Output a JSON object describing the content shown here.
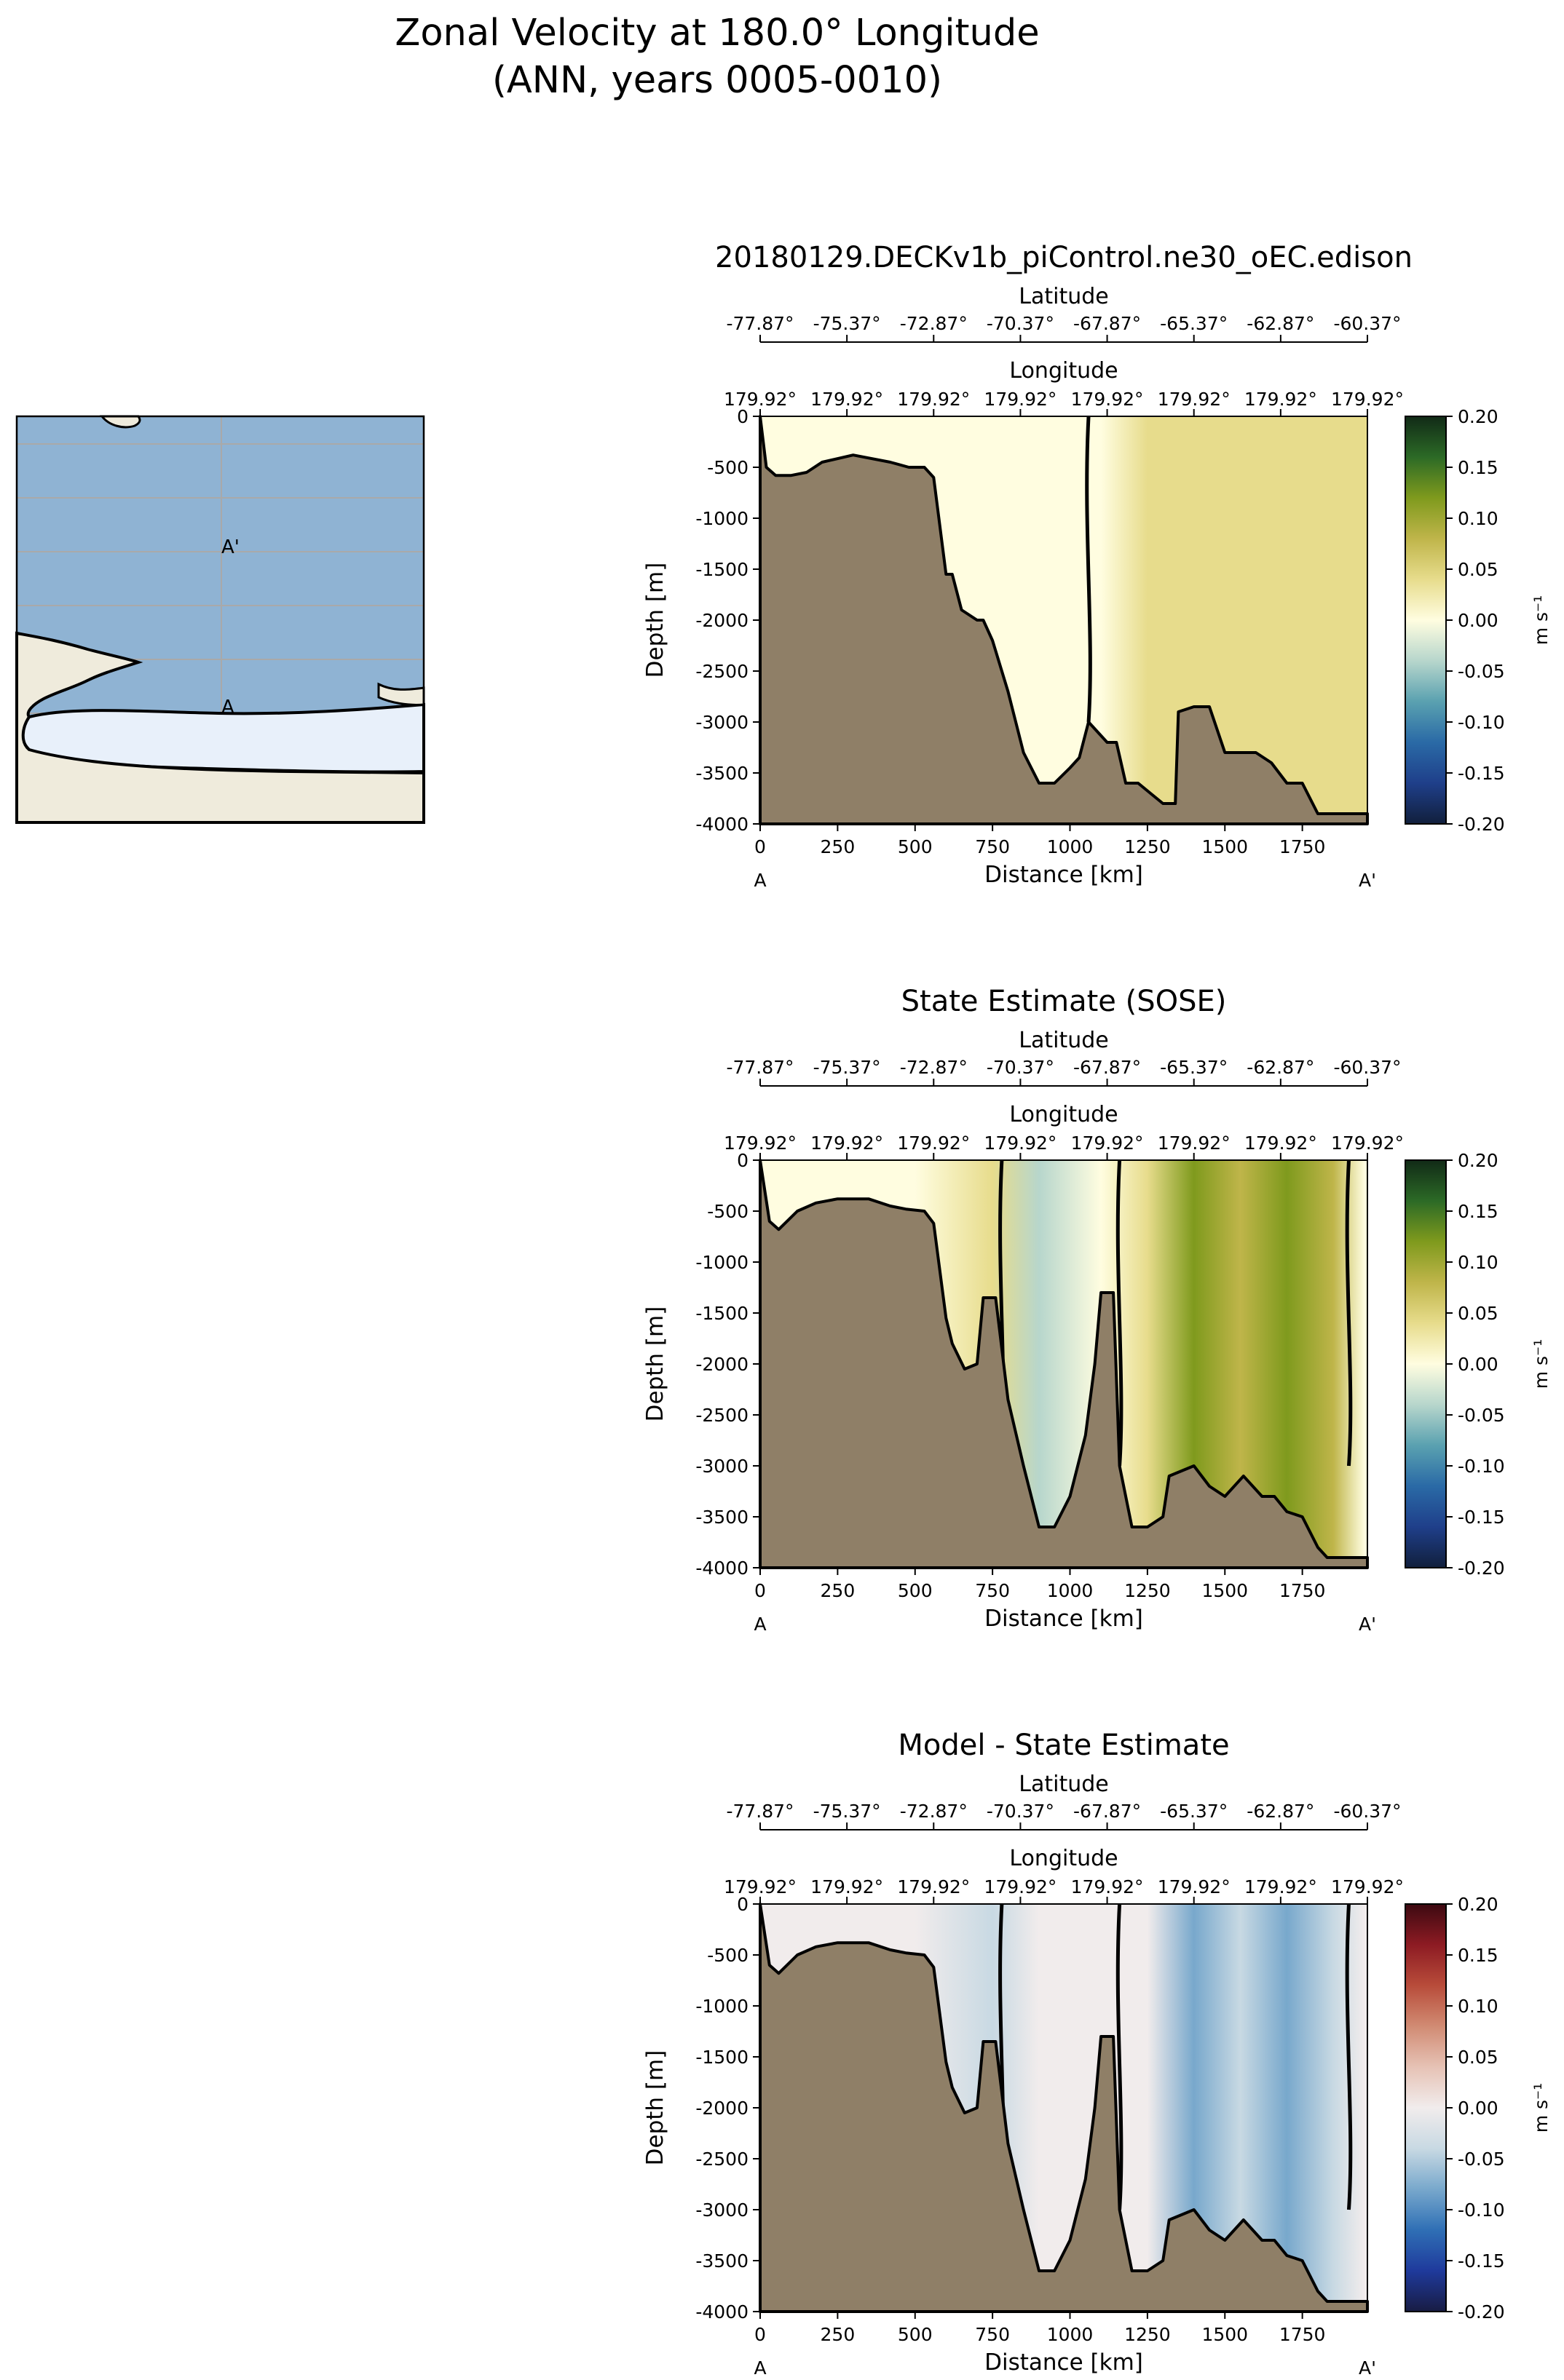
{
  "figure": {
    "title_line1": "Zonal Velocity at 180.0° Longitude",
    "title_line2": "(ANN, years 0005-0010)"
  },
  "map": {
    "point_start": "A",
    "point_end": "A'",
    "colors": {
      "ocean": "#8fb3d3",
      "land": "#efebdc",
      "ice": "#e8f0fa",
      "grid": "#a9a9a9"
    }
  },
  "chart_data": [
    {
      "type": "heatmap",
      "title": "20180129.DECKv1b_piControl.ne30_oEC.edison",
      "xlabel": "Distance [km]",
      "ylabel": "Depth [m]",
      "secondary_axes": {
        "latitude_label": "Latitude",
        "latitude_ticks": [
          "-77.87°",
          "-75.37°",
          "-72.87°",
          "-70.37°",
          "-67.87°",
          "-65.37°",
          "-62.87°",
          "-60.37°"
        ],
        "longitude_label": "Longitude",
        "longitude_ticks": [
          "179.92°",
          "179.92°",
          "179.92°",
          "179.92°",
          "179.92°",
          "179.92°",
          "179.92°",
          "179.92°"
        ]
      },
      "x_ticks": [
        "0",
        "250",
        "500",
        "750",
        "1000",
        "1250",
        "1500",
        "1750"
      ],
      "y_ticks": [
        "0",
        "-500",
        "-1000",
        "-1500",
        "-2000",
        "-2500",
        "-3000",
        "-3500",
        "-4000"
      ],
      "xlim": [
        0,
        1960
      ],
      "ylim": [
        -4000,
        0
      ],
      "section_start_label": "A",
      "section_end_label": "A'",
      "colorbar": {
        "label": "m s⁻¹",
        "range": [
          -0.2,
          0.2
        ],
        "ticks": [
          "0.20",
          "0.15",
          "0.10",
          "0.05",
          "0.00",
          "-0.05",
          "-0.10",
          "-0.15",
          "-0.20"
        ],
        "colormap": "delta"
      },
      "bathymetry_profile": {
        "distance_km": [
          0,
          20,
          50,
          100,
          150,
          200,
          300,
          420,
          480,
          530,
          560,
          600,
          620,
          650,
          700,
          720,
          750,
          800,
          850,
          900,
          950,
          1000,
          1030,
          1060,
          1090,
          1120,
          1150,
          1180,
          1220,
          1260,
          1300,
          1340,
          1350,
          1400,
          1450,
          1500,
          1600,
          1650,
          1700,
          1750,
          1800,
          1850,
          1900,
          1940,
          1960
        ],
        "depth_m": [
          0,
          -500,
          -580,
          -580,
          -550,
          -450,
          -380,
          -450,
          -500,
          -500,
          -600,
          -1550,
          -1550,
          -1900,
          -2000,
          -2000,
          -2200,
          -2700,
          -3300,
          -3600,
          -3600,
          -3450,
          -3350,
          -3000,
          -3100,
          -3200,
          -3200,
          -3600,
          -3600,
          -3700,
          -3800,
          -3800,
          -2900,
          -2850,
          -2850,
          -3300,
          -3300,
          -3400,
          -3600,
          -3600,
          -3900,
          -3900,
          -3900,
          -3900,
          -3900
        ]
      },
      "velocity_profile": {
        "distance_km": [
          0,
          250,
          500,
          750,
          1000,
          1100,
          1250,
          1500,
          1750,
          1950
        ],
        "surface_velocity_ms": [
          0.02,
          0.02,
          0.01,
          -0.005,
          -0.01,
          0.0,
          0.03,
          0.035,
          0.035,
          0.03
        ]
      },
      "zero_contour_km": [
        1060
      ]
    },
    {
      "type": "heatmap",
      "title": "State Estimate (SOSE)",
      "xlabel": "Distance [km]",
      "ylabel": "Depth [m]",
      "secondary_axes": {
        "latitude_label": "Latitude",
        "latitude_ticks": [
          "-77.87°",
          "-75.37°",
          "-72.87°",
          "-70.37°",
          "-67.87°",
          "-65.37°",
          "-62.87°",
          "-60.37°"
        ],
        "longitude_label": "Longitude",
        "longitude_ticks": [
          "179.92°",
          "179.92°",
          "179.92°",
          "179.92°",
          "179.92°",
          "179.92°",
          "179.92°",
          "179.92°"
        ]
      },
      "x_ticks": [
        "0",
        "250",
        "500",
        "750",
        "1000",
        "1250",
        "1500",
        "1750"
      ],
      "y_ticks": [
        "0",
        "-500",
        "-1000",
        "-1500",
        "-2000",
        "-2500",
        "-3000",
        "-3500",
        "-4000"
      ],
      "xlim": [
        0,
        1960
      ],
      "ylim": [
        -4000,
        0
      ],
      "section_start_label": "A",
      "section_end_label": "A'",
      "colorbar": {
        "label": "m s⁻¹",
        "range": [
          -0.2,
          0.2
        ],
        "ticks": [
          "0.20",
          "0.15",
          "0.10",
          "0.05",
          "0.00",
          "-0.05",
          "-0.10",
          "-0.15",
          "-0.20"
        ],
        "colormap": "delta"
      },
      "bathymetry_profile": {
        "distance_km": [
          0,
          30,
          60,
          120,
          180,
          250,
          350,
          420,
          470,
          530,
          560,
          600,
          620,
          660,
          700,
          720,
          760,
          800,
          850,
          900,
          950,
          1000,
          1050,
          1080,
          1100,
          1140,
          1160,
          1200,
          1250,
          1300,
          1320,
          1400,
          1450,
          1500,
          1560,
          1620,
          1660,
          1700,
          1750,
          1800,
          1830,
          1880,
          1920,
          1960
        ],
        "depth_m": [
          0,
          -600,
          -680,
          -500,
          -420,
          -380,
          -380,
          -450,
          -480,
          -500,
          -620,
          -1550,
          -1800,
          -2050,
          -2000,
          -1350,
          -1350,
          -2350,
          -3000,
          -3600,
          -3600,
          -3300,
          -2700,
          -2000,
          -1300,
          -1300,
          -3000,
          -3600,
          -3600,
          -3500,
          -3100,
          -3000,
          -3200,
          -3300,
          -3100,
          -3300,
          -3300,
          -3450,
          -3500,
          -3800,
          -3900,
          -3900,
          -3900,
          -3900
        ]
      },
      "velocity_profile": {
        "distance_km": [
          0,
          250,
          500,
          750,
          900,
          1100,
          1250,
          1400,
          1550,
          1700,
          1850,
          1950
        ],
        "surface_velocity_ms": [
          0.0,
          0.005,
          0.0,
          0.03,
          -0.03,
          -0.01,
          0.05,
          0.11,
          0.09,
          0.12,
          0.08,
          0.02
        ]
      },
      "zero_contour_km": [
        780,
        1160,
        1900
      ]
    },
    {
      "type": "heatmap",
      "title": "Model - State Estimate",
      "xlabel": "Distance [km]",
      "ylabel": "Depth [m]",
      "secondary_axes": {
        "latitude_label": "Latitude",
        "latitude_ticks": [
          "-77.87°",
          "-75.37°",
          "-72.87°",
          "-70.37°",
          "-67.87°",
          "-65.37°",
          "-62.87°",
          "-60.37°"
        ],
        "longitude_label": "Longitude",
        "longitude_ticks": [
          "179.92°",
          "179.92°",
          "179.92°",
          "179.92°",
          "179.92°",
          "179.92°",
          "179.92°",
          "179.92°"
        ]
      },
      "x_ticks": [
        "0",
        "250",
        "500",
        "750",
        "1000",
        "1250",
        "1500",
        "1750"
      ],
      "y_ticks": [
        "0",
        "-500",
        "-1000",
        "-1500",
        "-2000",
        "-2500",
        "-3000",
        "-3500",
        "-4000"
      ],
      "xlim": [
        0,
        1960
      ],
      "ylim": [
        -4000,
        0
      ],
      "section_start_label": "A",
      "section_end_label": "A'",
      "colorbar": {
        "label": "m s⁻¹",
        "range": [
          -0.2,
          0.2
        ],
        "ticks": [
          "0.20",
          "0.15",
          "0.10",
          "0.05",
          "0.00",
          "-0.05",
          "-0.10",
          "-0.15",
          "-0.20"
        ],
        "colormap": "balance"
      },
      "bathymetry_profile": {
        "distance_km": [
          0,
          30,
          60,
          120,
          180,
          250,
          350,
          420,
          470,
          530,
          560,
          600,
          620,
          660,
          700,
          720,
          760,
          800,
          850,
          900,
          950,
          1000,
          1050,
          1080,
          1100,
          1140,
          1160,
          1200,
          1250,
          1300,
          1320,
          1400,
          1450,
          1500,
          1560,
          1620,
          1660,
          1700,
          1750,
          1800,
          1830,
          1880,
          1920,
          1960
        ],
        "depth_m": [
          0,
          -600,
          -680,
          -500,
          -420,
          -380,
          -380,
          -450,
          -480,
          -500,
          -620,
          -1550,
          -1800,
          -2050,
          -2000,
          -1350,
          -1350,
          -2350,
          -3000,
          -3600,
          -3600,
          -3300,
          -2700,
          -2000,
          -1300,
          -1300,
          -3000,
          -3600,
          -3600,
          -3500,
          -3100,
          -3000,
          -3200,
          -3300,
          -3100,
          -3300,
          -3300,
          -3450,
          -3500,
          -3800,
          -3900,
          -3900,
          -3900,
          -3900
        ]
      },
      "velocity_profile": {
        "distance_km": [
          0,
          250,
          500,
          750,
          900,
          1100,
          1250,
          1400,
          1550,
          1700,
          1850,
          1950
        ],
        "surface_velocity_ms": [
          0.02,
          0.015,
          0.01,
          -0.03,
          0.02,
          0.01,
          -0.02,
          -0.07,
          -0.06,
          -0.09,
          -0.05,
          0.01
        ]
      },
      "zero_contour_km": [
        780,
        1160,
        1900
      ]
    }
  ]
}
